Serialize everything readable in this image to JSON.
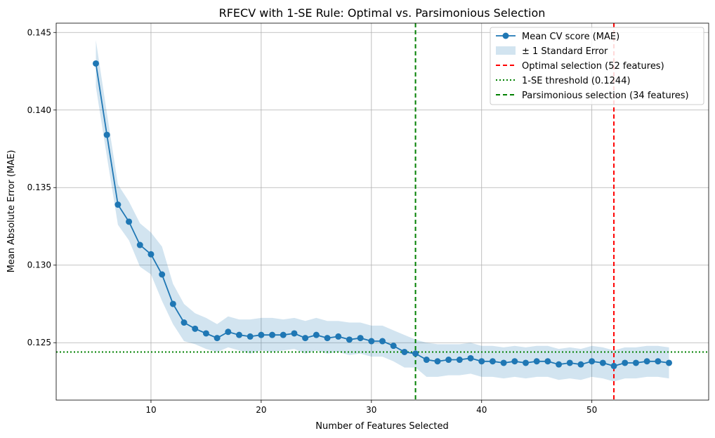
{
  "chart_data": {
    "type": "line",
    "title": "RFECV with 1-SE Rule: Optimal vs. Parsimonious Selection",
    "xlabel": "Number of Features Selected",
    "ylabel": "Mean Absolute Error (MAE)",
    "xlim": [
      1.4,
      60.6
    ],
    "ylim": [
      0.1213,
      0.1456
    ],
    "x_ticks": [
      10,
      20,
      30,
      40,
      50
    ],
    "y_ticks": [
      0.125,
      0.13,
      0.135,
      0.14,
      0.145
    ],
    "x_tick_labels": [
      "10",
      "20",
      "30",
      "40",
      "50"
    ],
    "y_tick_labels": [
      "0.125",
      "0.130",
      "0.135",
      "0.140",
      "0.145"
    ],
    "grid": true,
    "legend_position": "top-right",
    "series": [
      {
        "name": "Mean CV score (MAE)",
        "color": "#1f77b4",
        "x": [
          5,
          6,
          7,
          8,
          9,
          10,
          11,
          12,
          13,
          14,
          15,
          16,
          17,
          18,
          19,
          20,
          21,
          22,
          23,
          24,
          25,
          26,
          27,
          28,
          29,
          30,
          31,
          32,
          33,
          34,
          35,
          36,
          37,
          38,
          39,
          40,
          41,
          42,
          43,
          44,
          45,
          46,
          47,
          48,
          49,
          50,
          51,
          52,
          53,
          54,
          55,
          56,
          57
        ],
        "y": [
          0.143,
          0.1384,
          0.1339,
          0.1328,
          0.1313,
          0.1307,
          0.1294,
          0.1275,
          0.1263,
          0.1259,
          0.1256,
          0.1253,
          0.1257,
          0.1255,
          0.1254,
          0.1255,
          0.1255,
          0.1255,
          0.1256,
          0.1253,
          0.1255,
          0.1253,
          0.1254,
          0.1252,
          0.1253,
          0.1251,
          0.1251,
          0.1248,
          0.1244,
          0.1243,
          0.1239,
          0.1238,
          0.1239,
          0.1239,
          0.124,
          0.1238,
          0.1238,
          0.1237,
          0.1238,
          0.1237,
          0.1238,
          0.1238,
          0.1236,
          0.1237,
          0.1236,
          0.1238,
          0.1237,
          0.1235,
          0.1237,
          0.1237,
          0.1238,
          0.1238,
          0.1237
        ]
      },
      {
        "name": "± 1 Standard Error",
        "color": "#1f77b4",
        "opacity": 0.2,
        "lower": [
          0.1415,
          0.137,
          0.1326,
          0.1316,
          0.1299,
          0.1294,
          0.1277,
          0.1262,
          0.1251,
          0.1249,
          0.1246,
          0.1244,
          0.1247,
          0.1245,
          0.1243,
          0.1245,
          0.1244,
          0.1245,
          0.1246,
          0.1243,
          0.1245,
          0.1243,
          0.1244,
          0.1242,
          0.1243,
          0.1241,
          0.1241,
          0.1238,
          0.1234,
          0.1234,
          0.1228,
          0.1228,
          0.1229,
          0.1229,
          0.123,
          0.1228,
          0.1228,
          0.1227,
          0.1228,
          0.1227,
          0.1228,
          0.1228,
          0.1226,
          0.1227,
          0.1226,
          0.1228,
          0.1227,
          0.1225,
          0.1227,
          0.1227,
          0.1228,
          0.1228,
          0.1227
        ],
        "upper": [
          0.1445,
          0.1398,
          0.1352,
          0.1341,
          0.1327,
          0.1321,
          0.1312,
          0.1288,
          0.1275,
          0.1269,
          0.1266,
          0.1262,
          0.1267,
          0.1265,
          0.1265,
          0.1266,
          0.1266,
          0.1265,
          0.1266,
          0.1264,
          0.1266,
          0.1264,
          0.1264,
          0.1263,
          0.1263,
          0.1261,
          0.1261,
          0.1258,
          0.1255,
          0.1252,
          0.125,
          0.1249,
          0.1249,
          0.1249,
          0.125,
          0.1248,
          0.1248,
          0.1247,
          0.1248,
          0.1247,
          0.1248,
          0.1248,
          0.1246,
          0.1247,
          0.1246,
          0.1248,
          0.1247,
          0.1245,
          0.1247,
          0.1247,
          0.1248,
          0.1248,
          0.1247
        ]
      }
    ],
    "reference_lines": [
      {
        "name": "Optimal selection (52 features)",
        "orientation": "vertical",
        "value": 52,
        "color": "#ff0000",
        "style": "dashed"
      },
      {
        "name": "1-SE threshold (0.1244)",
        "orientation": "horizontal",
        "value": 0.1244,
        "color": "#008000",
        "style": "dotted"
      },
      {
        "name": "Parsimonious selection (34 features)",
        "orientation": "vertical",
        "value": 34,
        "color": "#008000",
        "style": "dashed"
      }
    ]
  }
}
